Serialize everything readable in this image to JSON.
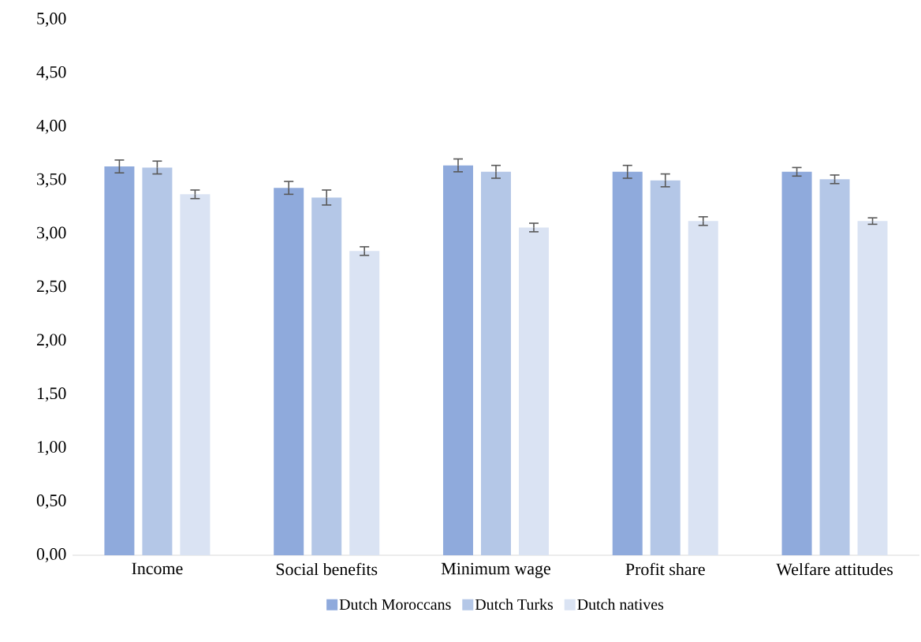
{
  "chart_data": {
    "type": "bar",
    "categories": [
      "Income",
      "Social benefits",
      "Minimum wage",
      "Profit share",
      "Welfare attitudes"
    ],
    "series": [
      {
        "name": "Dutch Moroccans",
        "color": "#8faadc",
        "values": [
          3.63,
          3.43,
          3.64,
          3.58,
          3.58
        ],
        "errors": [
          0.06,
          0.06,
          0.06,
          0.06,
          0.04
        ]
      },
      {
        "name": "Dutch Turks",
        "color": "#b4c7e7",
        "values": [
          3.62,
          3.34,
          3.58,
          3.5,
          3.51
        ],
        "errors": [
          0.06,
          0.07,
          0.06,
          0.06,
          0.04
        ]
      },
      {
        "name": "Dutch natives",
        "color": "#dae3f3",
        "values": [
          3.37,
          2.84,
          3.06,
          3.12,
          3.12
        ],
        "errors": [
          0.04,
          0.04,
          0.04,
          0.04,
          0.03
        ]
      }
    ],
    "ylim": [
      0,
      5
    ],
    "yticks": [
      {
        "value": 0,
        "label": "0,00"
      },
      {
        "value": 0.5,
        "label": "0,50"
      },
      {
        "value": 1,
        "label": "1,00"
      },
      {
        "value": 1.5,
        "label": "1,50"
      },
      {
        "value": 2,
        "label": "2,00"
      },
      {
        "value": 2.5,
        "label": "2,50"
      },
      {
        "value": 3,
        "label": "3,00"
      },
      {
        "value": 3.5,
        "label": "3,50"
      },
      {
        "value": 4,
        "label": "4,00"
      },
      {
        "value": 4.5,
        "label": "4,50"
      },
      {
        "value": 5,
        "label": "5,00"
      }
    ],
    "grid": false,
    "legend": "bottom"
  }
}
